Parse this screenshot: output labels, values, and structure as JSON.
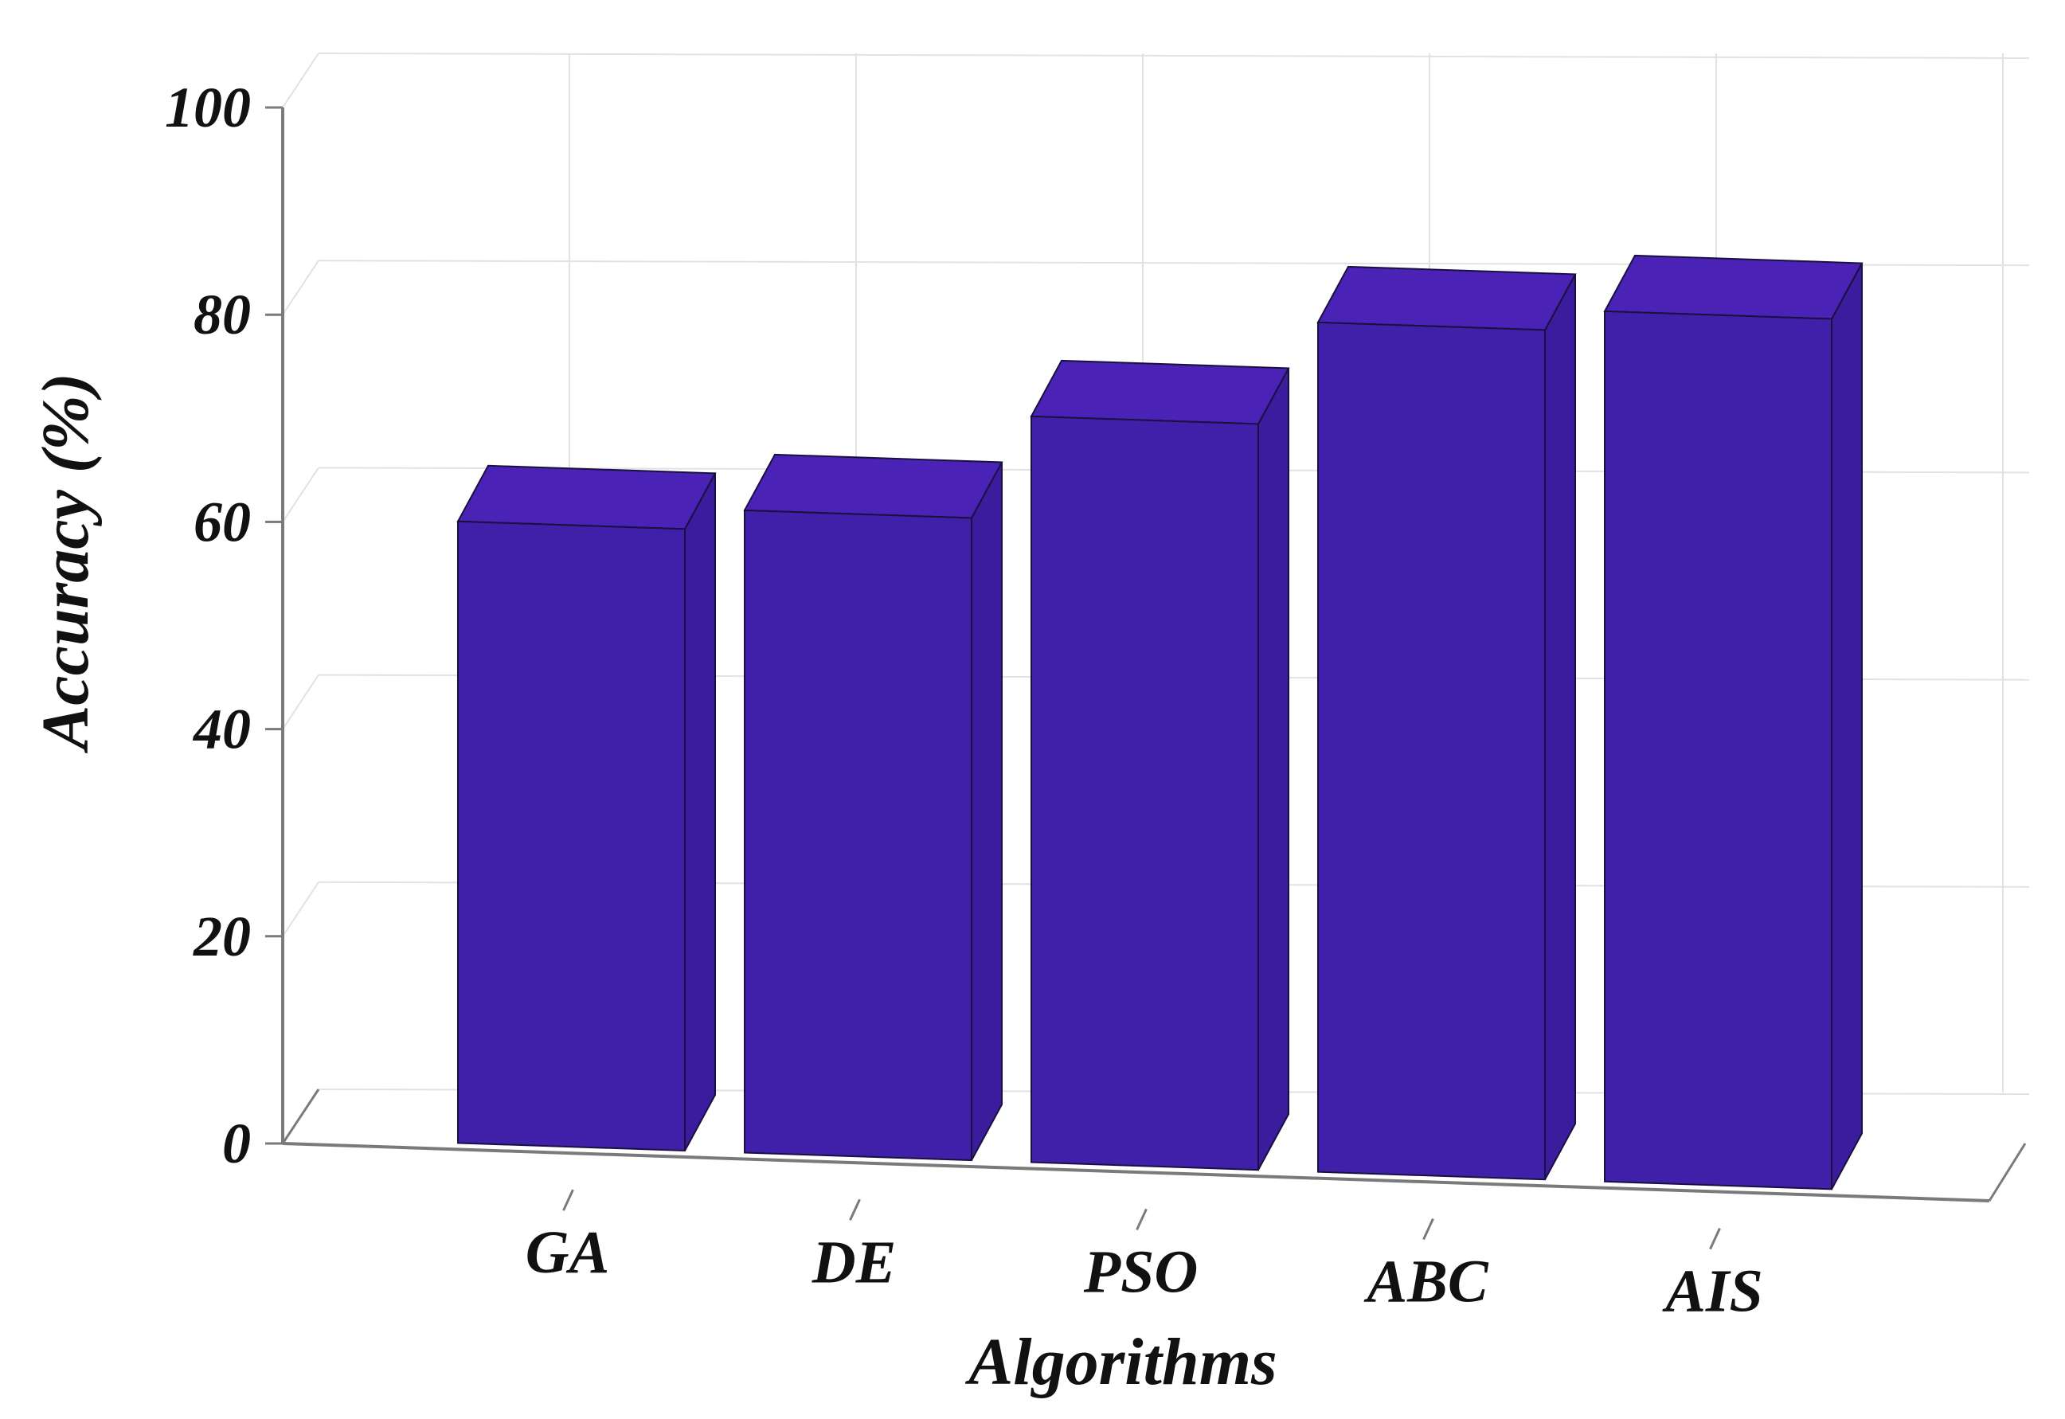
{
  "chart_data": {
    "type": "bar",
    "categories": [
      "GA",
      "DE",
      "PSO",
      "ABC",
      "AIS"
    ],
    "values": [
      60,
      62,
      72,
      82,
      84
    ],
    "title": "",
    "xlabel": "Algorithms",
    "ylabel": "Accuracy (%)",
    "ylim": [
      0,
      100
    ],
    "yticks": [
      "0",
      "20",
      "40",
      "60",
      "80",
      "100"
    ],
    "grid": true,
    "three_d": true,
    "colors": {
      "bar_front": "#4020a8",
      "bar_top": "#4a22b6",
      "bar_side": "#3a1c9c",
      "edge": "#1a1040",
      "grid": "#e2e2e2",
      "axis": "#7a7a7a"
    }
  }
}
